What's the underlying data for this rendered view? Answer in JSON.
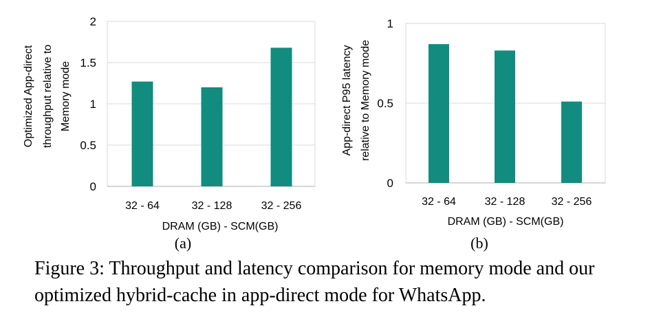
{
  "chart_data": [
    {
      "type": "bar",
      "panel_label": "(a)",
      "categories": [
        "32 - 64",
        "32 - 128",
        "32 - 256"
      ],
      "values": [
        1.27,
        1.2,
        1.68
      ],
      "ylabel_lines": [
        "Optimized App-direct",
        "throughput  relative to",
        "Memory mode"
      ],
      "xlabel": "DRAM (GB) - SCM(GB)",
      "ylim": [
        0,
        2
      ],
      "yticks": [
        "0",
        "0.5",
        "1",
        "1.5",
        "2"
      ],
      "ytick_values": [
        0,
        0.5,
        1,
        1.5,
        2
      ],
      "grid": true,
      "color": "#128C7E"
    },
    {
      "type": "bar",
      "panel_label": "(b)",
      "categories": [
        "32 - 64",
        "32 - 128",
        "32 - 256"
      ],
      "values": [
        0.87,
        0.83,
        0.51
      ],
      "ylabel_lines": [
        "App-direct  P95 latency",
        "relative to Memory mode"
      ],
      "xlabel": "DRAM (GB) - SCM(GB)",
      "ylim": [
        0,
        1
      ],
      "yticks": [
        "0",
        "0.5",
        "1"
      ],
      "ytick_values": [
        0,
        0.5,
        1
      ],
      "grid": true,
      "color": "#128C7E"
    }
  ],
  "caption": "Figure 3: Throughput and latency comparison for memory mode and our optimized hybrid-cache in app-direct mode for WhatsApp."
}
